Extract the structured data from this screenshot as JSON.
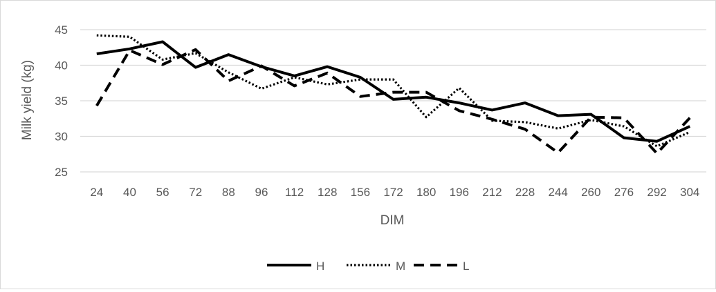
{
  "chart_data": {
    "type": "line",
    "title": "",
    "xlabel": "DIM",
    "ylabel": "Milk yield (kg)",
    "ylim": [
      25,
      45
    ],
    "yticks": [
      25,
      30,
      35,
      40,
      45
    ],
    "grid": "horizontal",
    "legend_position": "bottom",
    "categories": [
      "24",
      "40",
      "56",
      "72",
      "88",
      "96",
      "112",
      "128",
      "156",
      "172",
      "180",
      "196",
      "212",
      "228",
      "244",
      "260",
      "276",
      "292",
      "304"
    ],
    "series": [
      {
        "name": "H",
        "style": "solid",
        "color": "#000000",
        "values": [
          41.6,
          42.3,
          43.3,
          39.7,
          41.5,
          39.8,
          38.5,
          39.8,
          38.3,
          35.2,
          35.5,
          34.7,
          33.7,
          34.7,
          32.9,
          33.1,
          29.8,
          29.3,
          31.4
        ]
      },
      {
        "name": "M",
        "style": "dotted",
        "color": "#000000",
        "values": [
          44.2,
          44.0,
          40.8,
          41.7,
          39.0,
          36.7,
          38.3,
          37.3,
          38.0,
          38.0,
          32.7,
          36.8,
          32.2,
          32.0,
          31.1,
          32.3,
          31.4,
          28.6,
          30.6
        ]
      },
      {
        "name": "L",
        "style": "dashed",
        "color": "#000000",
        "values": [
          34.3,
          42.1,
          40.1,
          42.2,
          37.8,
          39.9,
          37.1,
          38.9,
          35.6,
          36.2,
          36.2,
          33.6,
          32.4,
          31.0,
          27.7,
          32.7,
          32.6,
          27.6,
          32.6
        ]
      }
    ]
  }
}
